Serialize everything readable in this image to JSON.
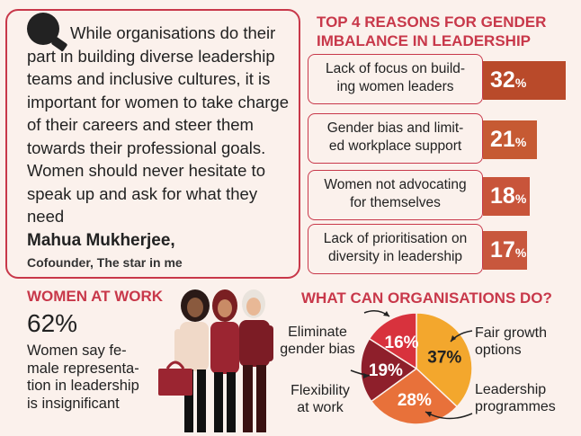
{
  "quote": {
    "text_line1": "While organisations do",
    "text_rest": "their part in building diverse leadership teams and inclusive cultures, it is important for women to take charge of their careers and steer them towards their professional goals. Women should never hesitate to speak up and ask for what they need",
    "author": "Mahua Mukherjee,",
    "role": "Cofounder, The star in me",
    "icon": "quote-magnifier-icon"
  },
  "reasons": {
    "title": "TOP 4 REASONS FOR GENDER IMBALANCE IN LEADERSHIP",
    "items": [
      {
        "label_l1": "Lack of focus on build-",
        "label_l2": "ing women leaders",
        "value": "32",
        "unit": "%",
        "color": "#b94a2a"
      },
      {
        "label_l1": "Gender bias and limit-",
        "label_l2": "ed workplace support",
        "value": "21",
        "unit": "%",
        "color": "#c65a33"
      },
      {
        "label_l1": "Women not advocating",
        "label_l2": "for themselves",
        "value": "18",
        "unit": "%",
        "color": "#c8543a"
      },
      {
        "label_l1": "Lack of prioritisation on",
        "label_l2": "diversity in leadership",
        "value": "17",
        "unit": "%",
        "color": "#c8573d"
      }
    ],
    "values_numeric": [
      32,
      21,
      18,
      17
    ]
  },
  "women_at_work": {
    "title": "WOMEN AT WORK",
    "value": "62%",
    "desc": "Women say fe-male representa-tion in leadership is insignificant",
    "desc_l1": "Women say fe-",
    "desc_l2": "male representa-",
    "desc_l3": "tion in leadership",
    "desc_l4": "is insignificant"
  },
  "orgs": {
    "title": "WHAT CAN ORGANISATIONS DO?",
    "labels": {
      "eliminate_l1": "Eliminate",
      "eliminate_l2": "gender bias",
      "flex_l1": "Flexibility",
      "flex_l2": "at work",
      "fair_l1": "Fair growth",
      "fair_l2": "options",
      "lead_l1": "Leadership",
      "lead_l2": "programmes"
    }
  },
  "chart_data": {
    "type": "pie",
    "categories": [
      "Fair growth options",
      "Leadership programmes",
      "Flexibility at work",
      "Eliminate gender bias"
    ],
    "values": [
      37,
      28,
      19,
      16
    ],
    "labels": [
      "37%",
      "28%",
      "19%",
      "16%"
    ],
    "colors": [
      "#f3a72d",
      "#e8713a",
      "#8e1f2b",
      "#d8323d"
    ]
  }
}
